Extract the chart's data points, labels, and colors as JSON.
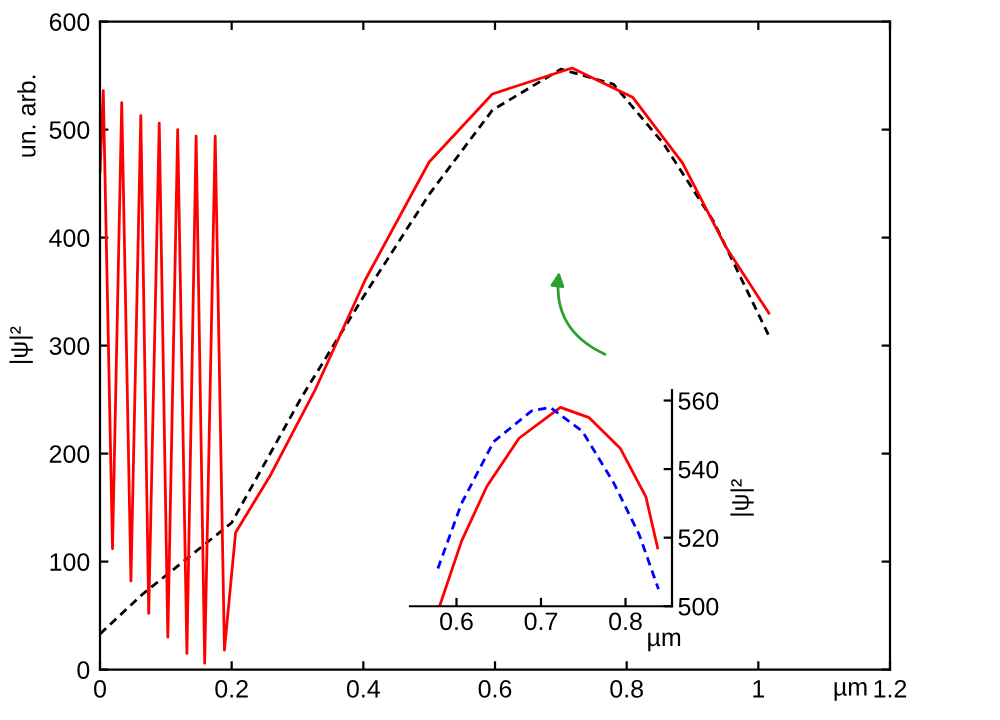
{
  "chart_data": [
    {
      "type": "line",
      "xlabel": "µm",
      "ylabel": "|ψ|²",
      "annotations": [
        "un. arb."
      ],
      "xlim": [
        0,
        1.2
      ],
      "ylim": [
        0,
        600
      ],
      "xticks": [
        0,
        0.2,
        0.4,
        0.6,
        0.8,
        1,
        1.2
      ],
      "yticks": [
        0,
        100,
        200,
        300,
        400,
        500,
        600
      ],
      "series": [
        {
          "color": "#000000",
          "line_style": "dashed",
          "x": [
            0,
            0.065,
            0.2,
            0.306,
            0.403,
            0.5,
            0.596,
            0.7,
            0.78,
            0.856,
            0.932,
            1.016
          ],
          "values": [
            33,
            70,
            136,
            252,
            348,
            440,
            518,
            556,
            542,
            487,
            415,
            309
          ]
        },
        {
          "color": "#ff0000",
          "line_style": "solid",
          "x": [
            0,
            0.005,
            0.019,
            0.033,
            0.047,
            0.062,
            0.074,
            0.09,
            0.103,
            0.118,
            0.132,
            0.146,
            0.159,
            0.175,
            0.189,
            0.206,
            0.258,
            0.326,
            0.403,
            0.5,
            0.596,
            0.717,
            0.809,
            0.885,
            0.951,
            1.016
          ],
          "values": [
            460,
            536,
            112,
            525,
            82,
            513,
            52,
            506,
            30,
            500,
            15,
            494,
            6,
            494,
            18,
            127,
            179,
            258,
            361,
            470,
            533,
            557,
            530,
            469,
            391,
            330
          ]
        }
      ]
    },
    {
      "type": "line",
      "xlabel": "µm",
      "ylabel": "|ψ|²",
      "xlim": [
        0.545,
        0.855
      ],
      "ylim": [
        500,
        563
      ],
      "xticks": [
        0.6,
        0.7,
        0.8
      ],
      "yticks": [
        500,
        520,
        540,
        560
      ],
      "series": [
        {
          "color": "#ff0000",
          "line_style": "solid",
          "x": [
            0.58,
            0.606,
            0.636,
            0.674,
            0.723,
            0.757,
            0.794,
            0.824,
            0.838
          ],
          "values": [
            500,
            519,
            535,
            549,
            558,
            555,
            546,
            532,
            517
          ]
        },
        {
          "color": "#0000ff",
          "line_style": "dashed",
          "x": [
            0.578,
            0.606,
            0.644,
            0.689,
            0.711,
            0.749,
            0.786,
            0.816,
            0.839
          ],
          "values": [
            511,
            530,
            548,
            557,
            558,
            551,
            536,
            521,
            505
          ]
        }
      ]
    }
  ]
}
